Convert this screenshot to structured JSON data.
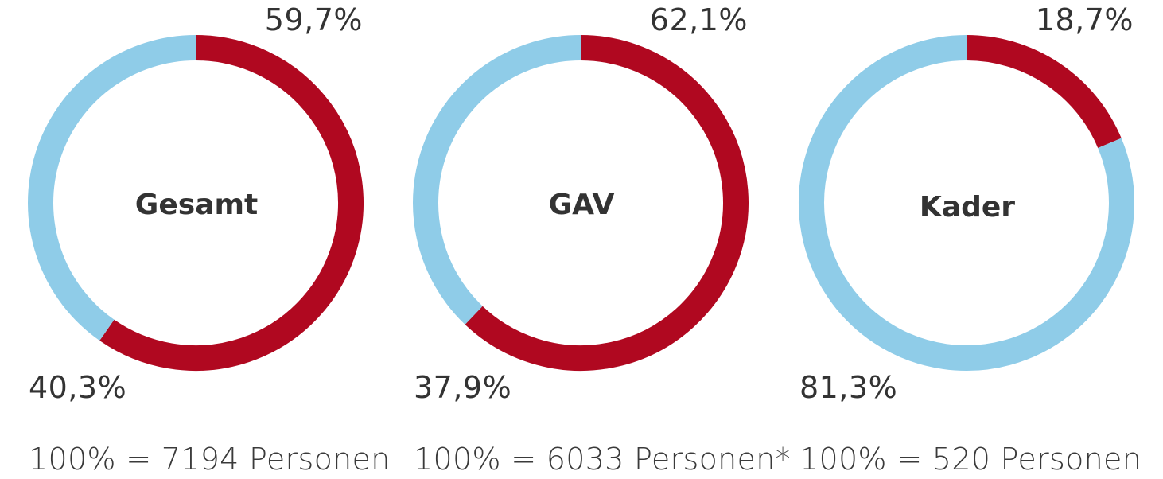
{
  "colors": {
    "red": "#b00820",
    "blue": "#8fcce8",
    "text": "#333333"
  },
  "chart_data": [
    {
      "type": "pie",
      "title": "Gesamt",
      "slices": [
        {
          "value": 59.7,
          "color": "#b00820"
        },
        {
          "value": 40.3,
          "color": "#8fcce8"
        }
      ],
      "labels": [
        "59,7%",
        "40,3%"
      ],
      "total_text": "100% = 7194 Personen"
    },
    {
      "type": "pie",
      "title": "GAV",
      "slices": [
        {
          "value": 62.1,
          "color": "#b00820"
        },
        {
          "value": 37.9,
          "color": "#8fcce8"
        }
      ],
      "labels": [
        "62,1%",
        "37,9%"
      ],
      "total_text": "100% = 6033 Personen*"
    },
    {
      "type": "pie",
      "title": "Kader",
      "slices": [
        {
          "value": 18.7,
          "color": "#b00820"
        },
        {
          "value": 81.3,
          "color": "#8fcce8"
        }
      ],
      "labels": [
        "18,7%",
        "81,3%"
      ],
      "total_text": "100% = 520 Personen"
    }
  ]
}
